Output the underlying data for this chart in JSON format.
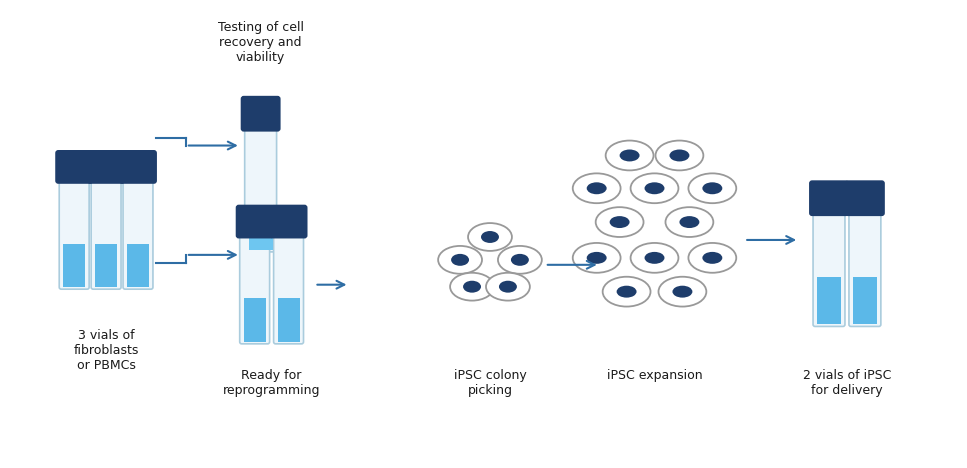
{
  "bg_color": "#ffffff",
  "dark_blue": "#1e3d6b",
  "mid_blue": "#2e6da4",
  "light_blue": "#5bb8e8",
  "lighter_blue": "#a8d8f0",
  "cell_outline": "#999999",
  "arrow_color": "#2e6da4",
  "text_color": "#1a1a1a",
  "labels": {
    "step1": "3 vials of\nfibroblasts\nor PBMCs",
    "step2_top": "Testing of cell\nrecovery and\nviability",
    "step2_bot": "Ready for\nreprogramming",
    "step3": "iPSC colony\npicking",
    "step4": "iPSC expansion",
    "step5": "2 vials of iPSC\nfor delivery"
  },
  "figsize": [
    9.67,
    4.68
  ],
  "dpi": 100
}
